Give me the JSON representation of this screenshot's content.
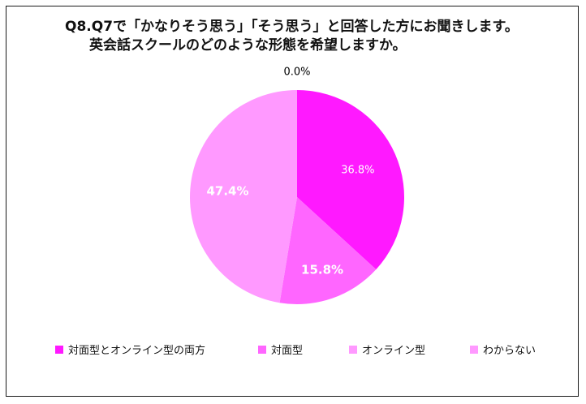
{
  "title": {
    "line1": "Q8.Q7で「かなりそう思う」「そう思う」と回答した方にお聞きします。",
    "line2": "英会話スクールのどのような形態を希望しますか。"
  },
  "chart_data": {
    "type": "pie",
    "start_angle_deg": 0,
    "direction": "clockwise",
    "slices": [
      {
        "label": "対面型とオンライン型の両方",
        "value": 36.8,
        "display": "36.8%",
        "color": "#FF19FF",
        "label_color": "#ffffff",
        "label_bold": false
      },
      {
        "label": "対面型",
        "value": 15.8,
        "display": "15.8%",
        "color": "#FF66FF",
        "label_color": "#ffffff",
        "label_bold": true
      },
      {
        "label": "オンライン型",
        "value": 47.4,
        "display": "47.4%",
        "color": "#FF99FF",
        "label_color": "#ffffff",
        "label_bold": true
      },
      {
        "label": "わからない",
        "value": 0.0,
        "display": "0.0%",
        "color": "#FF99FF",
        "label_color": "#000000",
        "label_bold": false
      }
    ],
    "legend_position": "bottom"
  }
}
